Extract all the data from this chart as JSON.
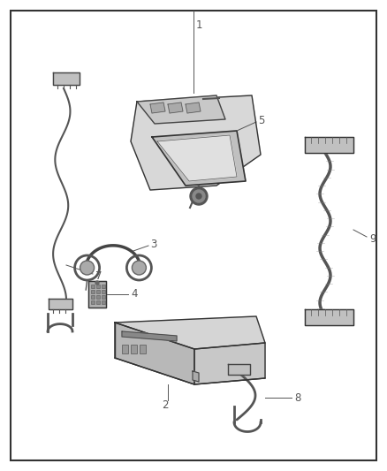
{
  "bg_color": "#ffffff",
  "border_color": "#333333",
  "line_color": "#555555",
  "label_color": "#555555",
  "thin_line": 0.7,
  "part_line": 1.0,
  "label_fontsize": 8.5
}
